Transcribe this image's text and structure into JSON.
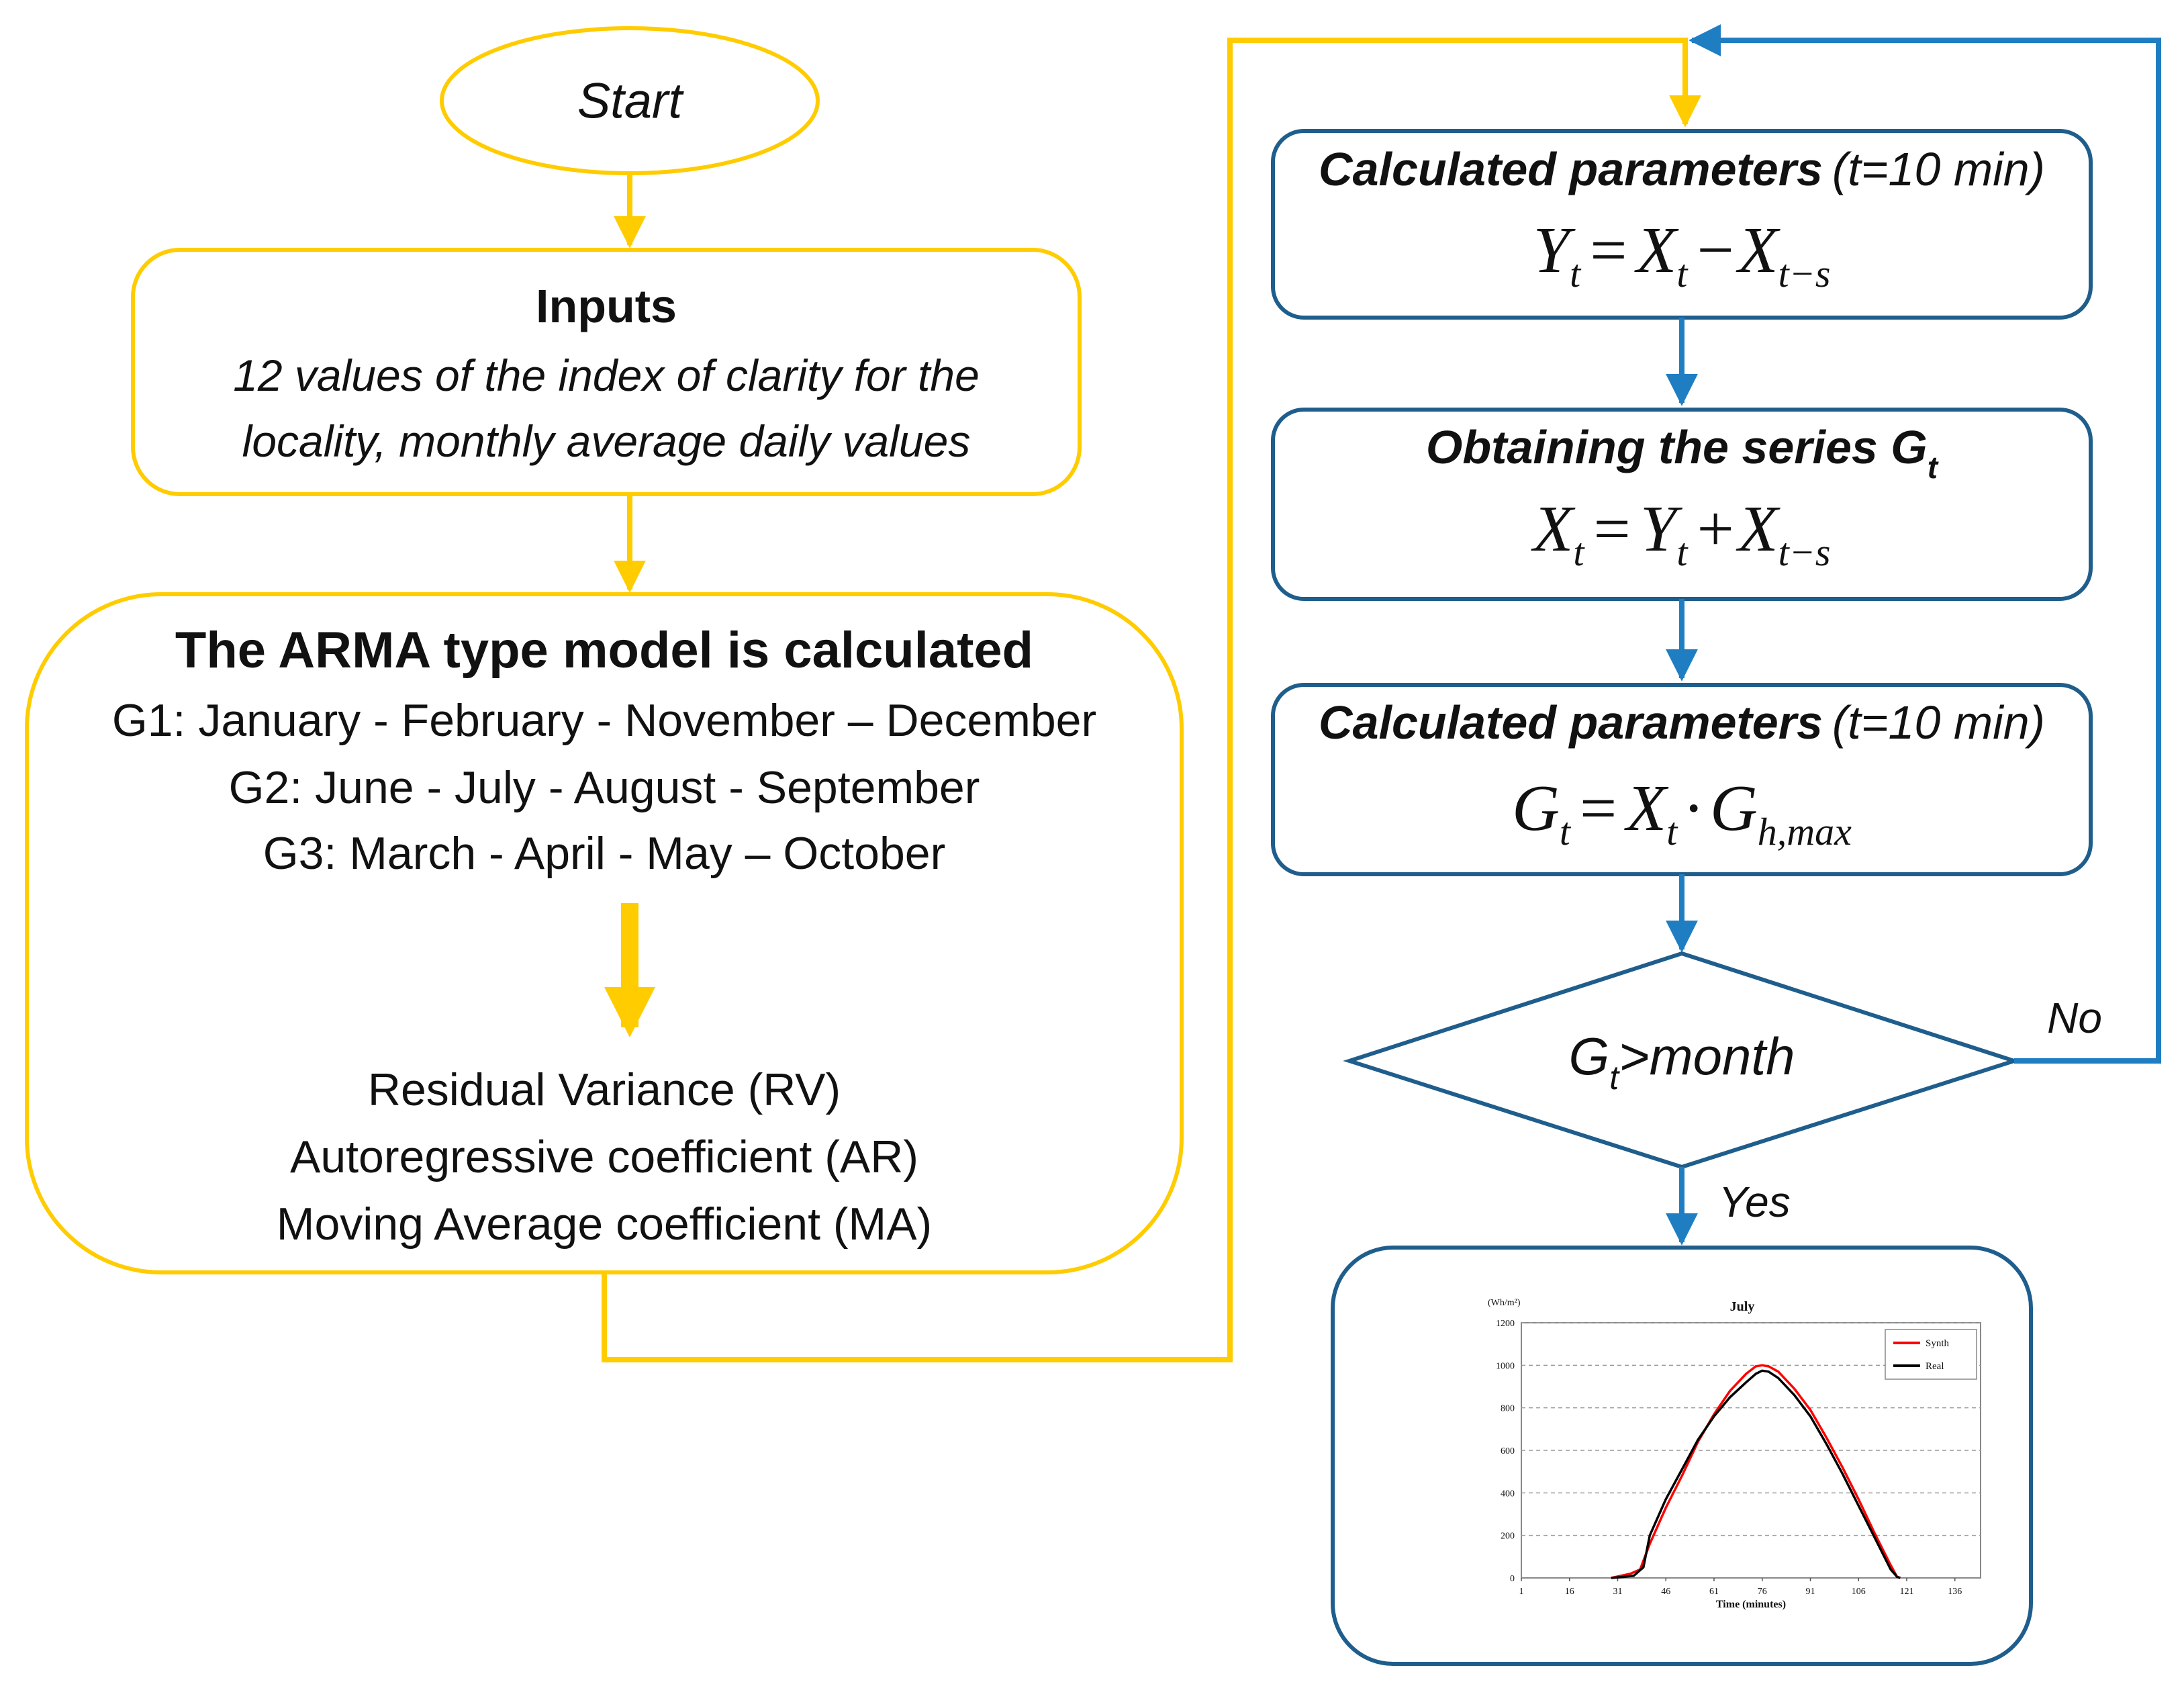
{
  "colors": {
    "yellow": "#FFCC00",
    "blue_arrow": "#1F7EC2",
    "blue_box": "#1F5E8C",
    "text": "#111111",
    "synth_line": "#FF0000",
    "real_line": "#000000",
    "grid": "#9a9a9a"
  },
  "start": {
    "label": "Start"
  },
  "inputs": {
    "title": "Inputs",
    "line1": "12 values of the index of clarity for the",
    "line2": "locality, monthly average daily values"
  },
  "arma": {
    "title": "The ARMA type model is calculated",
    "groups": [
      "G1: January - February - November – December",
      "G2: June - July - August - September",
      "G3: March - April - May – October"
    ],
    "outputs": [
      "Residual Variance (RV)",
      "Autoregressive coefficient (AR)",
      "Moving Average coefficient (MA)"
    ]
  },
  "box1": {
    "title_bold": "Calculated parameters",
    "title_paren": "(t=10 min)",
    "formula": {
      "lhs": "Y",
      "lhs_sub": "t",
      "eq": "=",
      "a": "X",
      "a_sub": "t",
      "op": "−",
      "b": "X",
      "b_sub": "t−s"
    }
  },
  "box2": {
    "title_bold": "Obtaining the series G",
    "title_sub": "t",
    "formula": {
      "lhs": "X",
      "lhs_sub": "t",
      "eq": "=",
      "a": "Y",
      "a_sub": "t",
      "op": "+",
      "b": "X",
      "b_sub": "t−s"
    }
  },
  "box3": {
    "title_bold": "Calculated parameters",
    "title_paren": "(t=10 min)",
    "formula": {
      "lhs": "G",
      "lhs_sub": "t",
      "eq": "=",
      "a": "X",
      "a_sub": "t",
      "op": "·",
      "b": "G",
      "b_sub": "h,max"
    }
  },
  "decision": {
    "g": "G",
    "sub": "t",
    "rest": ">month",
    "no": "No",
    "yes": "Yes"
  },
  "chart_data": {
    "type": "line",
    "title": "July",
    "ylabel": "(Wh/m²)",
    "xlabel": "Time (minutes)",
    "ylim": [
      0,
      1200
    ],
    "xlim": [
      1,
      144
    ],
    "yticks": [
      0,
      200,
      400,
      600,
      800,
      1000,
      1200
    ],
    "xticks": [
      "1",
      "16",
      "31",
      "46",
      "61",
      "76",
      "91",
      "106",
      "121",
      "136"
    ],
    "xtick_values": [
      1,
      16,
      31,
      46,
      61,
      76,
      91,
      106,
      121,
      136
    ],
    "grid": true,
    "legend": "top-right",
    "series": [
      {
        "name": "Synth",
        "color": "#FF0000",
        "x": [
          29,
          32,
          35,
          38,
          41,
          46,
          51,
          56,
          61,
          66,
          71,
          74,
          76,
          78,
          81,
          86,
          91,
          96,
          101,
          106,
          111,
          116,
          118,
          119
        ],
        "y": [
          0,
          10,
          20,
          40,
          160,
          330,
          480,
          640,
          770,
          880,
          960,
          995,
          1000,
          995,
          970,
          890,
          790,
          660,
          520,
          370,
          210,
          60,
          5,
          0
        ]
      },
      {
        "name": "Real",
        "color": "#000000",
        "x": [
          29,
          33,
          36,
          39,
          41,
          46,
          51,
          56,
          61,
          66,
          71,
          74,
          76,
          78,
          81,
          86,
          91,
          96,
          101,
          106,
          111,
          116,
          118,
          119
        ],
        "y": [
          0,
          5,
          10,
          50,
          200,
          370,
          510,
          650,
          760,
          850,
          920,
          960,
          975,
          970,
          940,
          860,
          760,
          630,
          490,
          340,
          190,
          40,
          5,
          0
        ]
      }
    ]
  }
}
